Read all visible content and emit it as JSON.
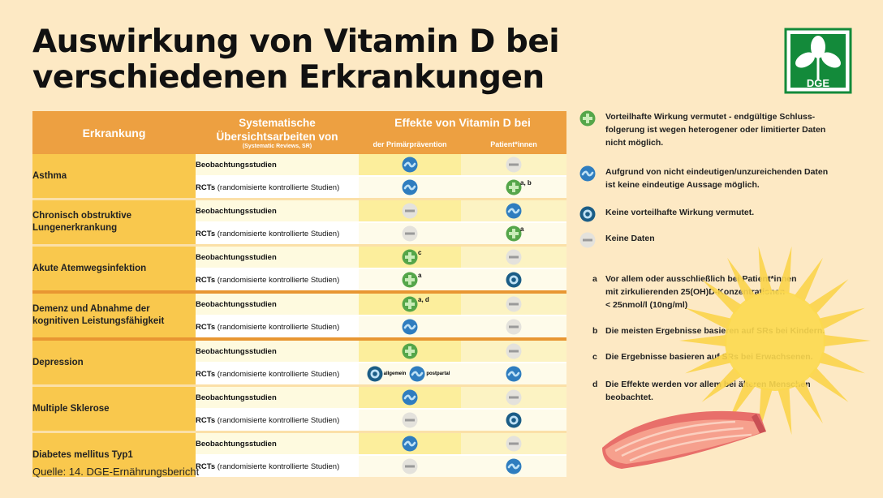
{
  "title": {
    "line1": "Auswirkung von Vitamin D bei",
    "line2": "verschiedenen Erkrankungen"
  },
  "logo": {
    "text": "DGE",
    "color": "#138a3a"
  },
  "colors": {
    "header": "#eda041",
    "disease": "#f9c84d",
    "positive": "#55a64a",
    "tilde": "#2f7dbf",
    "none": "#1b5d86",
    "nodata": "#bdbdbd"
  },
  "header": {
    "disease": "Erkrankung",
    "sr_line1": "Systematische",
    "sr_line2": "Übersichtsarbeiten von",
    "sr_sub": "(Systematic Reviews, SR)",
    "effects": "Effekte von Vitamin D bei",
    "primary": "der Primärprävention",
    "patients": "Patient*innen"
  },
  "study_types": {
    "obs": "Beobachtungsstudien",
    "rct_bold": "RCTs",
    "rct_rest": "(randomisierte kontrollierte Studien)"
  },
  "rows": [
    {
      "disease_line1": "Asthma",
      "disease_line2": "",
      "obs": {
        "primary": "tilde",
        "primary_fn": "",
        "patients": "nodata",
        "patients_fn": ""
      },
      "rct": {
        "primary": "tilde",
        "primary_fn": "",
        "patients": "plus",
        "patients_fn": "a, b"
      }
    },
    {
      "disease_line1": "Chronisch obstruktive",
      "disease_line2": "Lungenerkrankung",
      "obs": {
        "primary": "nodata",
        "primary_fn": "",
        "patients": "tilde",
        "patients_fn": ""
      },
      "rct": {
        "primary": "nodata",
        "primary_fn": "",
        "patients": "plus",
        "patients_fn": "a"
      }
    },
    {
      "disease_line1": "Akute Atemwegsinfektion",
      "disease_line2": "",
      "obs": {
        "primary": "plus",
        "primary_fn": "c",
        "patients": "nodata",
        "patients_fn": ""
      },
      "rct": {
        "primary": "plus",
        "primary_fn": "a",
        "patients": "none",
        "patients_fn": ""
      }
    },
    {
      "disease_line1": "Demenz und Abnahme der",
      "disease_line2": "kognitiven Leistungsfähigkeit",
      "obs": {
        "primary": "plus",
        "primary_fn": "a, d",
        "patients": "nodata",
        "patients_fn": ""
      },
      "rct": {
        "primary": "tilde",
        "primary_fn": "",
        "patients": "nodata",
        "patients_fn": ""
      }
    },
    {
      "disease_line1": "Depression",
      "disease_line2": "",
      "obs": {
        "primary": "plus",
        "primary_fn": "",
        "patients": "nodata",
        "patients_fn": ""
      },
      "rct": {
        "primary": "split",
        "split_a_label": "allgemein",
        "split_b_label": "postpartal",
        "patients": "tilde",
        "patients_fn": ""
      }
    },
    {
      "disease_line1": "Multiple Sklerose",
      "disease_line2": "",
      "obs": {
        "primary": "tilde",
        "primary_fn": "",
        "patients": "nodata",
        "patients_fn": ""
      },
      "rct": {
        "primary": "nodata",
        "primary_fn": "",
        "patients": "none",
        "patients_fn": ""
      }
    },
    {
      "disease_line1": "Diabetes mellitus Typ1",
      "disease_line2": "",
      "obs": {
        "primary": "tilde",
        "primary_fn": "",
        "patients": "nodata",
        "patients_fn": ""
      },
      "rct": {
        "primary": "nodata",
        "primary_fn": "",
        "patients": "tilde",
        "patients_fn": ""
      }
    }
  ],
  "legend": [
    {
      "icon": "plus",
      "lines": [
        "Vorteilhafte Wirkung vermutet - endgültige Schluss-",
        "folgerung ist wegen heterogener oder limitierter Daten",
        "nicht möglich."
      ]
    },
    {
      "icon": "tilde",
      "lines": [
        "Aufgrund von nicht eindeutigen/unzureichenden Daten",
        "ist keine eindeutige Aussage möglich."
      ]
    },
    {
      "icon": "none",
      "lines": [
        "Keine vorteilhafte Wirkung vermutet."
      ]
    },
    {
      "icon": "nodata",
      "lines": [
        "Keine Daten"
      ]
    }
  ],
  "notes": [
    {
      "key": "a",
      "lines": [
        "Vor allem oder ausschließlich bei Patient*innen",
        "mit zirkulierenden 25(OH)D-Konzentrationen",
        "< 25nmol/l (10ng/ml)"
      ]
    },
    {
      "key": "b",
      "lines": [
        "Die meisten Ergebnisse basieren auf SRs bei Kindern."
      ]
    },
    {
      "key": "c",
      "lines": [
        "Die Ergebnisse basieren auf SRs bei Erwachsenen."
      ]
    },
    {
      "key": "d",
      "lines": [
        "Die Effekte werden vor allem bei älteren Menschen",
        "beobachtet."
      ]
    }
  ],
  "source": "Quelle: 14. DGE-Ernährungsbericht"
}
